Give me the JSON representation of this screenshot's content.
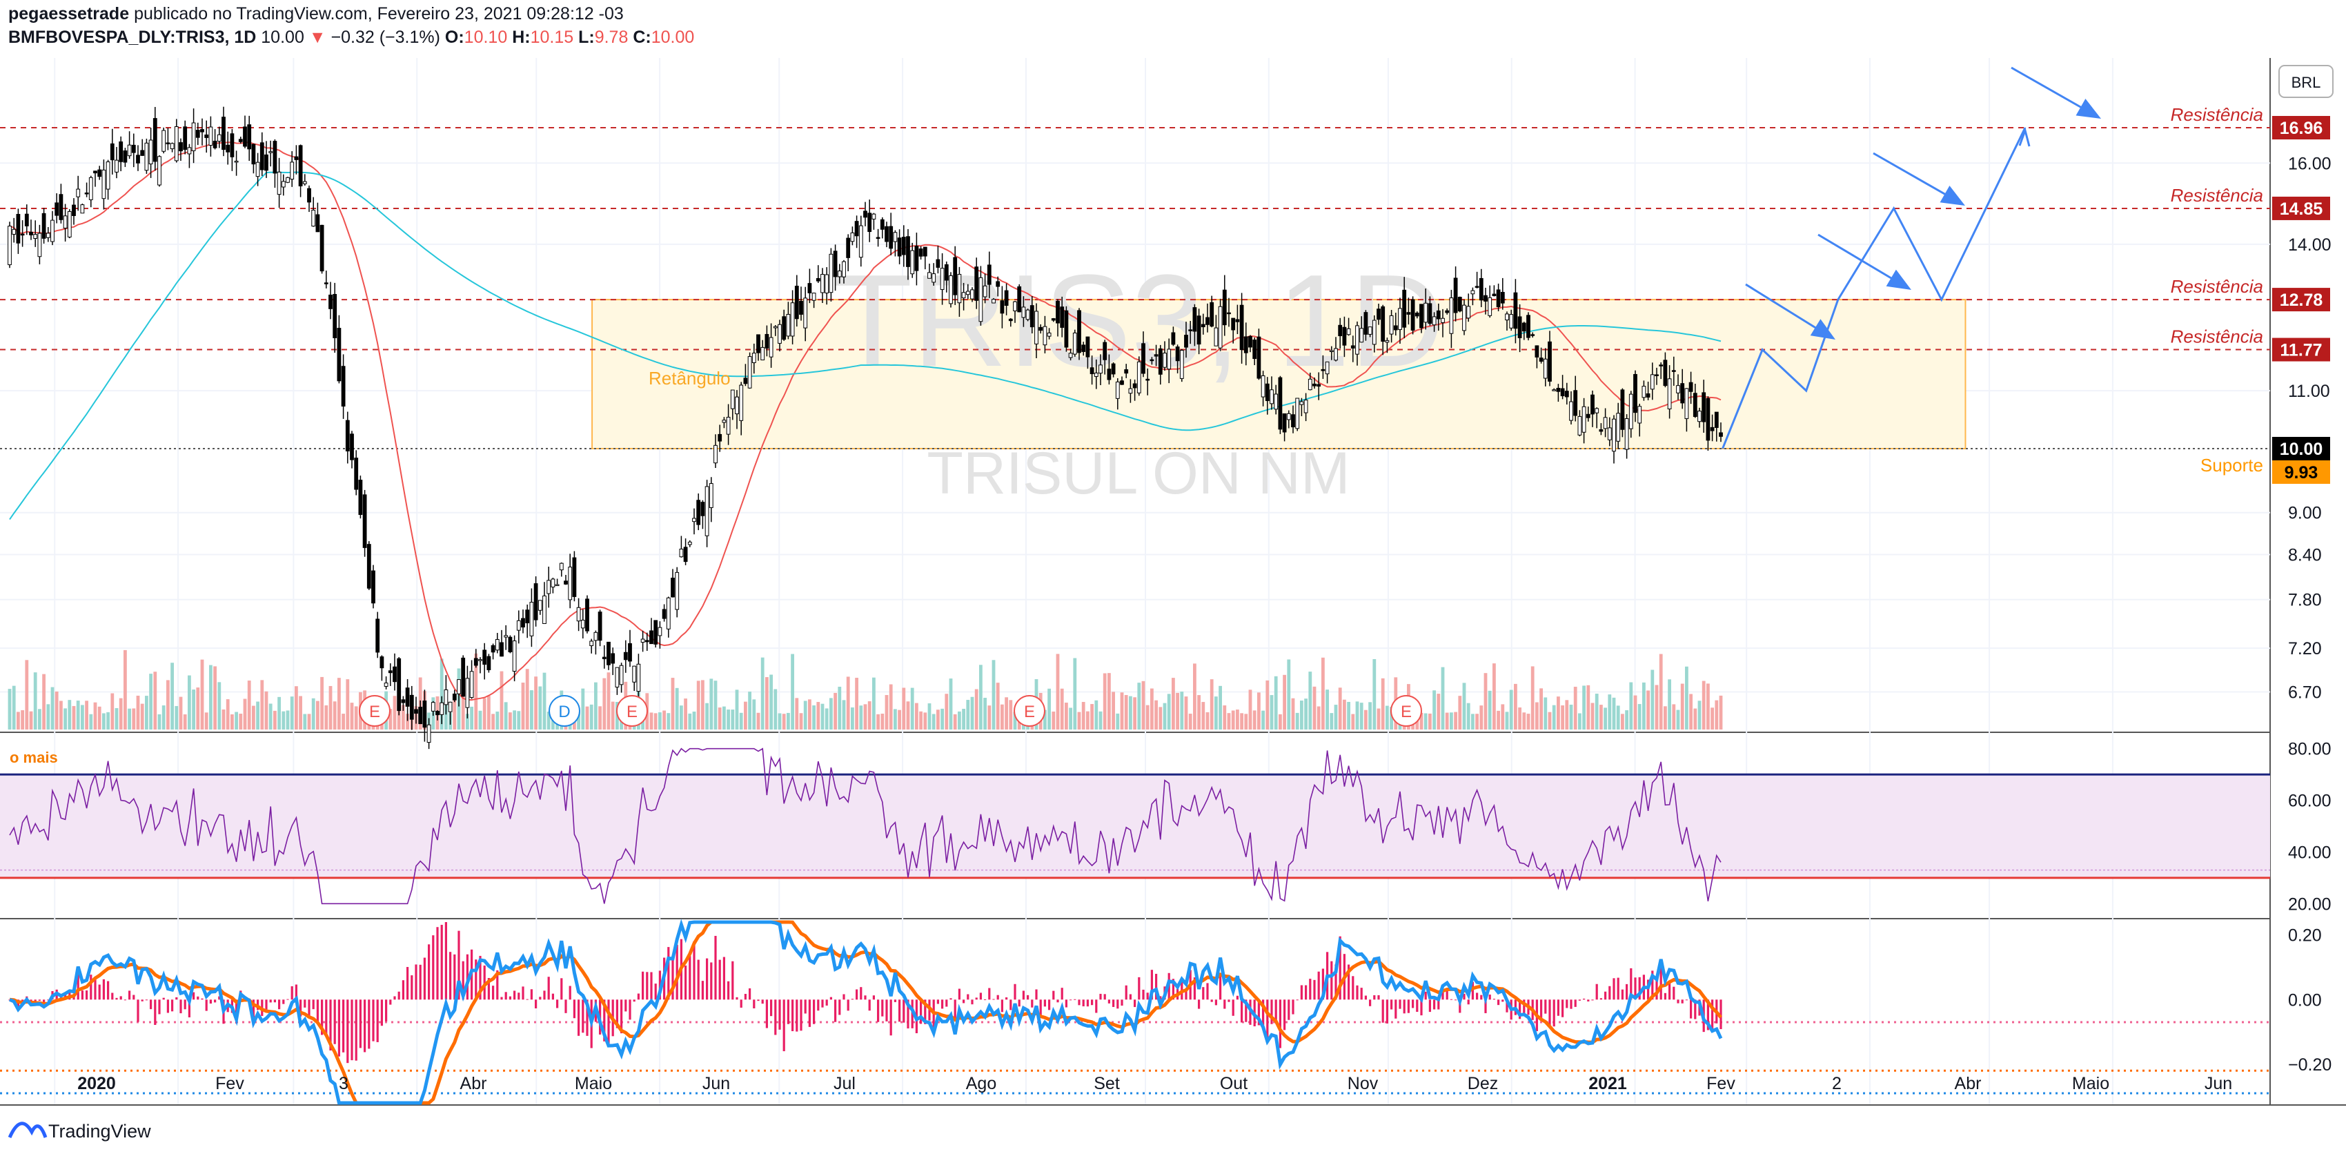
{
  "header": {
    "author": "pegaessetrade",
    "published_text": "publicado no TradingView.com, Fevereiro 23, 2021 09:28:12 -03",
    "symbol": "BMFBOVESPA_DLY:TRIS3, 1D",
    "last": "10.00",
    "change": "−0.32 (−3.1%)",
    "open_label": "O:",
    "open": "10.10",
    "high_label": "H:",
    "high": "10.15",
    "low_label": "L:",
    "low": "9.78",
    "close_label": "C:",
    "close": "10.00"
  },
  "watermark": {
    "ticker": "TRIS3, 1D",
    "name": "TRISUL ON NM"
  },
  "currency_badge": "BRL",
  "price_scale": [
    "16.00",
    "14.00",
    "11.00",
    "9.00",
    "8.40",
    "7.80",
    "7.20",
    "6.70"
  ],
  "price_labels": [
    {
      "text": "16.96",
      "color": "#b71c1c"
    },
    {
      "text": "14.85",
      "color": "#b71c1c"
    },
    {
      "text": "12.78",
      "color": "#b71c1c"
    },
    {
      "text": "11.77",
      "color": "#b71c1c"
    },
    {
      "text": "10.00",
      "color": "#000000"
    },
    {
      "text": "9.93",
      "color": "#ff9800"
    }
  ],
  "annotations": {
    "resistances": [
      "Resistência",
      "Resistência",
      "Resistência",
      "Resistência"
    ],
    "support": "Suporte",
    "rectangle": "Retângulo",
    "rsi_caption": "o mais"
  },
  "event_badges": [
    "E",
    "D",
    "E",
    "E",
    "E"
  ],
  "rsi_scale": [
    "80.00",
    "60.00",
    "40.00",
    "20.00"
  ],
  "macd_scale": [
    "0.20",
    "0.00",
    "−0.20"
  ],
  "time_axis": [
    "2020",
    "Fev",
    "3",
    "Abr",
    "Maio",
    "Jun",
    "Jul",
    "Ago",
    "Set",
    "Out",
    "Nov",
    "Dez",
    "2021",
    "Fev",
    "2",
    "Abr",
    "Maio",
    "Jun"
  ],
  "footer": {
    "brand": "TradingView"
  },
  "colors": {
    "up": "#26a69a",
    "down": "#000000",
    "ma_fast": "#ef5350",
    "ma_slow": "#26c6da",
    "rsi_line": "#7b1fa2",
    "rsi_fill": "#f3e5f5",
    "macd_hist": "#e91e63",
    "macd_line": "#2196f3",
    "signal_line": "#ff6d00",
    "resistance": "#c62828",
    "rect_fill": "#fff8e1",
    "rect_border": "#ffb74d",
    "arrow": "#4285f4"
  },
  "chart_data": {
    "type": "candlestick",
    "title": "BMFBOVESPA_DLY:TRIS3, 1D",
    "y_range": [
      6.4,
      17.6
    ],
    "log_scale": true,
    "horizontal_levels": [
      {
        "name": "Resistência",
        "value": 16.96
      },
      {
        "name": "Resistência",
        "value": 14.85
      },
      {
        "name": "Resistência",
        "value": 12.78
      },
      {
        "name": "Resistência",
        "value": 11.77
      },
      {
        "name": "Suporte",
        "value": 10.0
      }
    ],
    "rectangle": {
      "label": "Retângulo",
      "top": 12.78,
      "bottom": 10.0,
      "from": "2020-05-15",
      "to": "2021-04-25"
    },
    "projection": [
      10.0,
      11.77,
      11.0,
      12.78,
      14.85,
      12.78,
      16.96
    ],
    "price_path": [
      [
        "2019-12-20",
        14.1
      ],
      [
        "2020-01-02",
        14.6
      ],
      [
        "2020-01-20",
        16.2
      ],
      [
        "2020-02-05",
        16.8
      ],
      [
        "2020-02-20",
        16.3
      ],
      [
        "2020-03-04",
        15.6
      ],
      [
        "2020-03-09",
        13.0
      ],
      [
        "2020-03-16",
        9.5
      ],
      [
        "2020-03-23",
        7.0
      ],
      [
        "2020-04-01",
        6.3
      ],
      [
        "2020-04-15",
        6.9
      ],
      [
        "2020-04-30",
        7.6
      ],
      [
        "2020-05-08",
        8.2
      ],
      [
        "2020-05-20",
        6.9
      ],
      [
        "2020-06-01",
        7.4
      ],
      [
        "2020-06-12",
        9.2
      ],
      [
        "2020-06-20",
        11.0
      ],
      [
        "2020-06-30",
        12.0
      ],
      [
        "2020-07-15",
        13.6
      ],
      [
        "2020-07-25",
        14.5
      ],
      [
        "2020-08-05",
        13.5
      ],
      [
        "2020-08-20",
        13.0
      ],
      [
        "2020-09-10",
        12.1
      ],
      [
        "2020-09-25",
        11.1
      ],
      [
        "2020-10-10",
        11.7
      ],
      [
        "2020-10-20",
        12.6
      ],
      [
        "2020-11-05",
        10.4
      ],
      [
        "2020-11-20",
        11.9
      ],
      [
        "2020-12-10",
        12.5
      ],
      [
        "2020-12-22",
        12.9
      ],
      [
        "2021-01-05",
        12.1
      ],
      [
        "2021-01-15",
        10.8
      ],
      [
        "2021-01-28",
        10.4
      ],
      [
        "2021-02-08",
        11.4
      ],
      [
        "2021-02-23",
        10.0
      ]
    ],
    "rsi": {
      "upper": 70,
      "lower": 30,
      "range": [
        15,
        85
      ]
    },
    "macd": {
      "range": [
        -0.32,
        0.24
      ]
    }
  }
}
